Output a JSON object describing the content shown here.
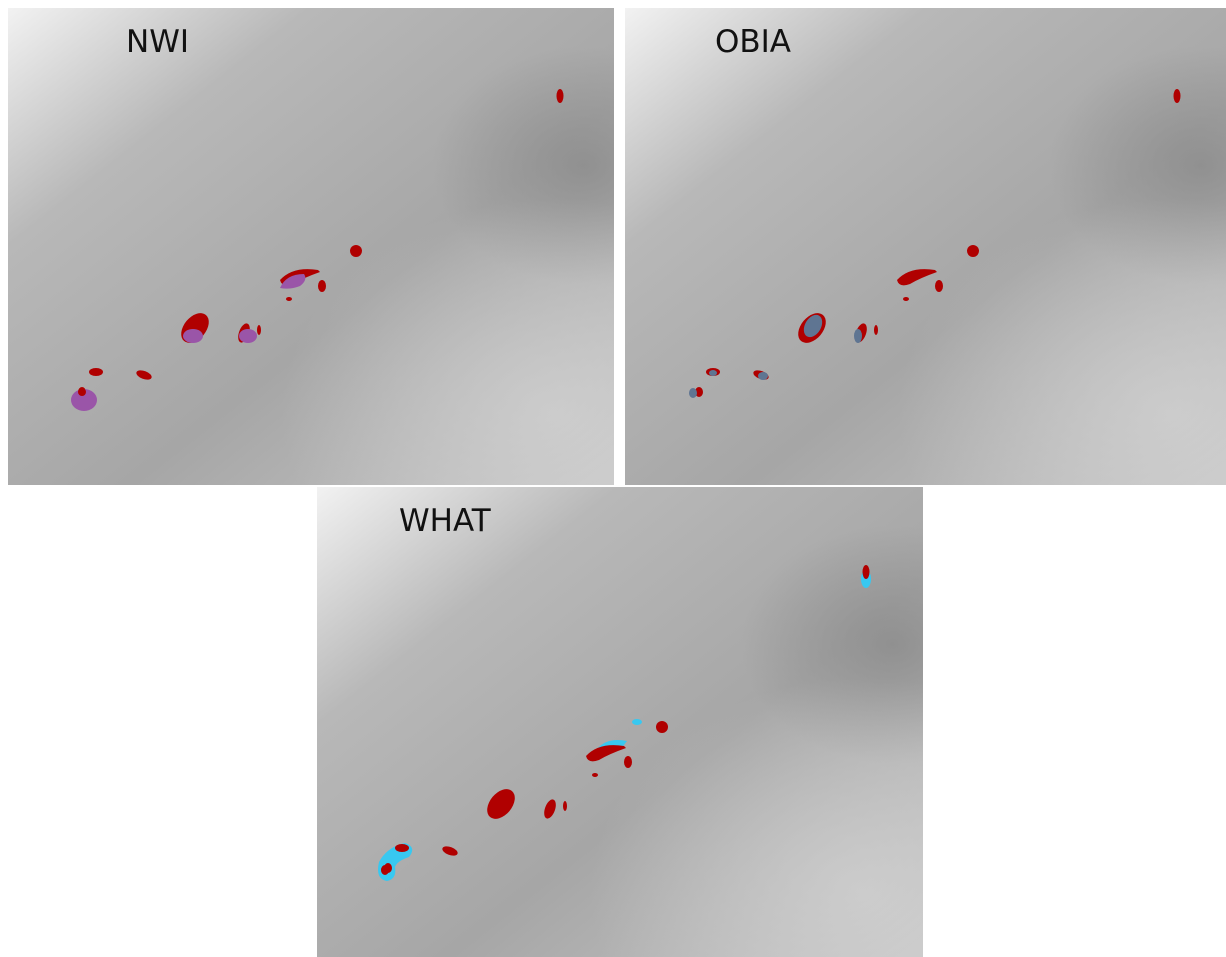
{
  "panels": [
    {
      "title": "NWI"
    },
    {
      "title": "OBIA"
    },
    {
      "title": "WHAT"
    }
  ]
}
